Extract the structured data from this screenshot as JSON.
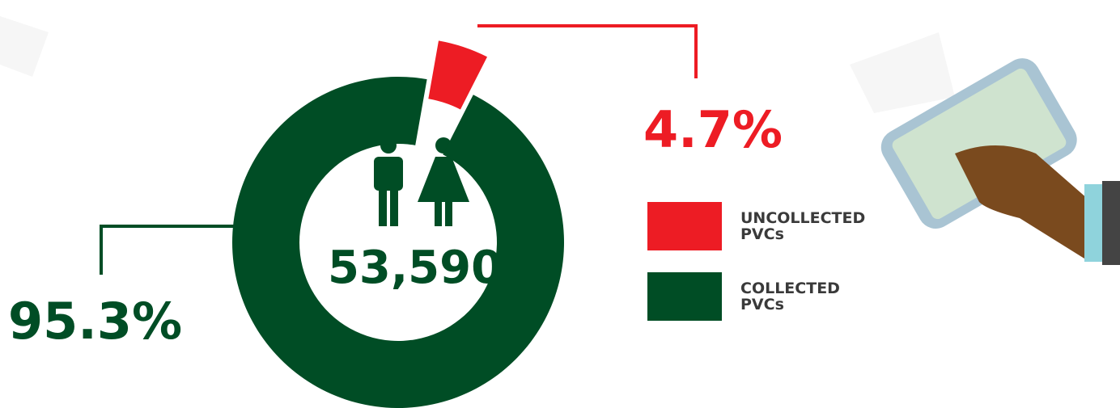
{
  "chart_data": {
    "type": "donut",
    "center_label": "53,590",
    "series": [
      {
        "name": "UNCOLLECTED PVCs",
        "color": "#ed1c24",
        "values": [
          4.7
        ],
        "value_labels": [
          "4.7%"
        ]
      },
      {
        "name": "COLLECTED PVCs",
        "color": "#004d25",
        "values": [
          95.3
        ],
        "value_labels": [
          "95.3%"
        ]
      }
    ]
  }
}
